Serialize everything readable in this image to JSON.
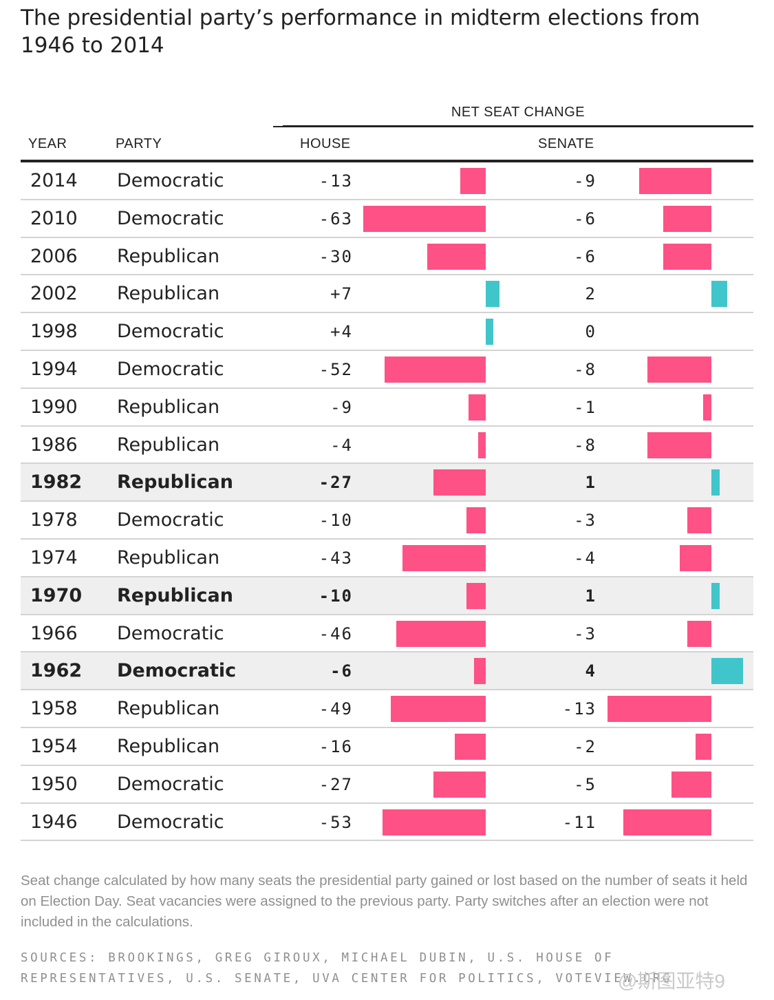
{
  "title": "The presidential party’s performance in midterm elections from 1946 to 2014",
  "header": {
    "net_seat_change": "NET SEAT CHANGE",
    "year": "YEAR",
    "party": "PARTY",
    "house": "HOUSE",
    "senate": "SENATE"
  },
  "colors": {
    "loss": "#fe5186",
    "gain": "#40c5cb",
    "highlight_row": "#efefef"
  },
  "chart_data": {
    "type": "table",
    "columns": [
      "YEAR",
      "PARTY",
      "HOUSE",
      "SENATE"
    ],
    "house_scale_max": 63,
    "senate_scale_max": 13,
    "rows": [
      {
        "year": "2014",
        "party": "Democratic",
        "house_label": "-13",
        "senate_label": "-9",
        "house": -13,
        "senate": -9,
        "highlight": false
      },
      {
        "year": "2010",
        "party": "Democratic",
        "house_label": "-63",
        "senate_label": "-6",
        "house": -63,
        "senate": -6,
        "highlight": false
      },
      {
        "year": "2006",
        "party": "Republican",
        "house_label": "-30",
        "senate_label": "-6",
        "house": -30,
        "senate": -6,
        "highlight": false
      },
      {
        "year": "2002",
        "party": "Republican",
        "house_label": "+7",
        "senate_label": "2",
        "house": 7,
        "senate": 2,
        "highlight": false
      },
      {
        "year": "1998",
        "party": "Democratic",
        "house_label": "+4",
        "senate_label": "0",
        "house": 4,
        "senate": 0,
        "highlight": false
      },
      {
        "year": "1994",
        "party": "Democratic",
        "house_label": "-52",
        "senate_label": "-8",
        "house": -52,
        "senate": -8,
        "highlight": false
      },
      {
        "year": "1990",
        "party": "Republican",
        "house_label": "-9",
        "senate_label": "-1",
        "house": -9,
        "senate": -1,
        "highlight": false
      },
      {
        "year": "1986",
        "party": "Republican",
        "house_label": "-4",
        "senate_label": "-8",
        "house": -4,
        "senate": -8,
        "highlight": false
      },
      {
        "year": "1982",
        "party": "Republican",
        "house_label": "-27",
        "senate_label": "1",
        "house": -27,
        "senate": 1,
        "highlight": true
      },
      {
        "year": "1978",
        "party": "Democratic",
        "house_label": "-10",
        "senate_label": "-3",
        "house": -10,
        "senate": -3,
        "highlight": false
      },
      {
        "year": "1974",
        "party": "Republican",
        "house_label": "-43",
        "senate_label": "-4",
        "house": -43,
        "senate": -4,
        "highlight": false
      },
      {
        "year": "1970",
        "party": "Republican",
        "house_label": "-10",
        "senate_label": "1",
        "house": -10,
        "senate": 1,
        "highlight": true
      },
      {
        "year": "1966",
        "party": "Democratic",
        "house_label": "-46",
        "senate_label": "-3",
        "house": -46,
        "senate": -3,
        "highlight": false
      },
      {
        "year": "1962",
        "party": "Democratic",
        "house_label": "-6",
        "senate_label": "4",
        "house": -6,
        "senate": 4,
        "highlight": true
      },
      {
        "year": "1958",
        "party": "Republican",
        "house_label": "-49",
        "senate_label": "-13",
        "house": -49,
        "senate": -13,
        "highlight": false
      },
      {
        "year": "1954",
        "party": "Republican",
        "house_label": "-16",
        "senate_label": "-2",
        "house": -16,
        "senate": -2,
        "highlight": false
      },
      {
        "year": "1950",
        "party": "Democratic",
        "house_label": "-27",
        "senate_label": "-5",
        "house": -27,
        "senate": -5,
        "highlight": false
      },
      {
        "year": "1946",
        "party": "Democratic",
        "house_label": "-53",
        "senate_label": "-11",
        "house": -53,
        "senate": -11,
        "highlight": false
      }
    ]
  },
  "note": "Seat change calculated by how many seats the presidential party gained or lost based on the number of seats it held on Election Day. Seat vacancies were assigned to the previous party. Party switches after an election were not included in the calculations.",
  "sources": "SOURCES: BROOKINGS, GREG GIROUX, MICHAEL DUBIN, U.S. HOUSE OF REPRESENTATIVES, U.S. SENATE, UVA CENTER FOR POLITICS, VOTEVIEW.ORG",
  "watermark": "@斯图亚特9"
}
